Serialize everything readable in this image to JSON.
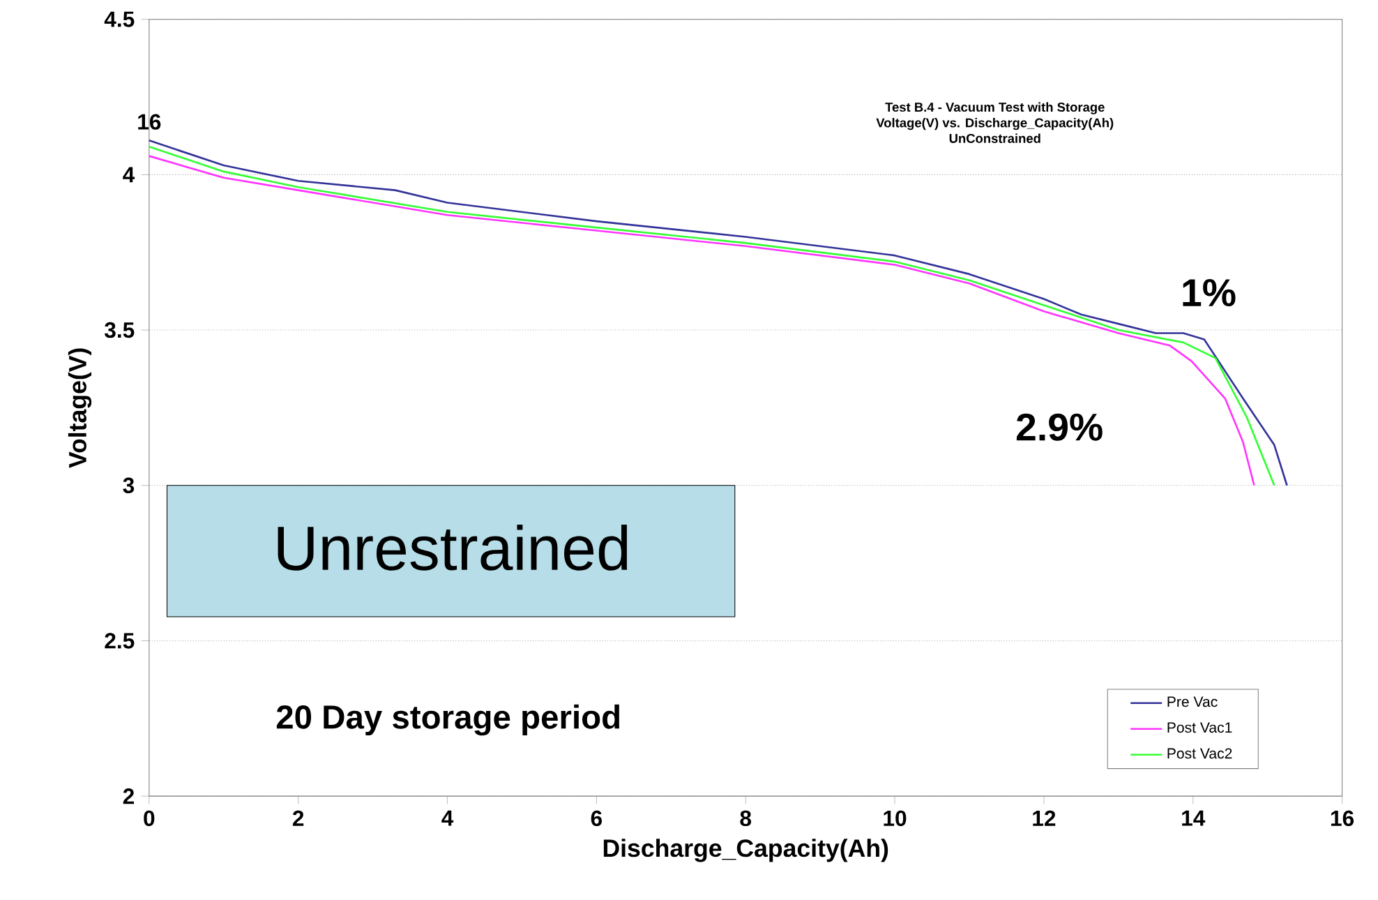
{
  "chart_data": {
    "type": "line",
    "title": "Test B.4 - Vacuum Test with Storage",
    "subtitle": "Voltage(V) vs. Discharge_Capacity(Ah)",
    "xlabel": "Discharge_Capacity(Ah)",
    "ylabel": "Voltage(V)",
    "series": [
      {
        "name": "Pre Vac",
        "color": "#333399",
        "x": [
          0,
          1,
          2,
          3.3,
          4,
          6,
          8,
          10,
          11,
          12,
          12.5,
          13,
          13.5,
          13.87,
          14.15,
          14.67,
          15.09,
          15.26
        ],
        "values": [
          4.11,
          4.03,
          3.98,
          3.95,
          3.91,
          3.85,
          3.8,
          3.74,
          3.68,
          3.6,
          3.55,
          3.52,
          3.49,
          3.49,
          3.47,
          3.28,
          3.13,
          3.0
        ]
      },
      {
        "name": "Post Vac1",
        "color": "#ff33ff",
        "x": [
          0,
          1,
          2,
          4,
          6,
          8,
          10,
          11,
          12,
          13,
          13.69,
          13.98,
          14.43,
          14.67,
          14.82
        ],
        "values": [
          4.06,
          3.99,
          3.95,
          3.87,
          3.82,
          3.77,
          3.71,
          3.65,
          3.56,
          3.49,
          3.45,
          3.4,
          3.28,
          3.14,
          3.0
        ]
      },
      {
        "name": "Post Vac2",
        "color": "#33ff33",
        "x": [
          0,
          1,
          2,
          4,
          6,
          8,
          10,
          11,
          12,
          13,
          13.87,
          14.3,
          14.72,
          15.09
        ],
        "values": [
          4.09,
          4.01,
          3.96,
          3.88,
          3.83,
          3.78,
          3.72,
          3.66,
          3.58,
          3.5,
          3.46,
          3.41,
          3.22,
          3.0
        ]
      }
    ],
    "xlim": [
      0,
      16
    ],
    "ylim": [
      2,
      4.5
    ],
    "xticks": [
      0,
      2,
      4,
      6,
      8,
      10,
      12,
      14,
      16
    ],
    "yticks": [
      2,
      2.5,
      3,
      3.5,
      4,
      4.5
    ],
    "grid": "y",
    "legend": "bottom right",
    "annotations": [
      "16",
      "UnConstrained",
      "Unrestrained",
      "1%",
      "2.9%",
      "20 Day storage period"
    ]
  }
}
